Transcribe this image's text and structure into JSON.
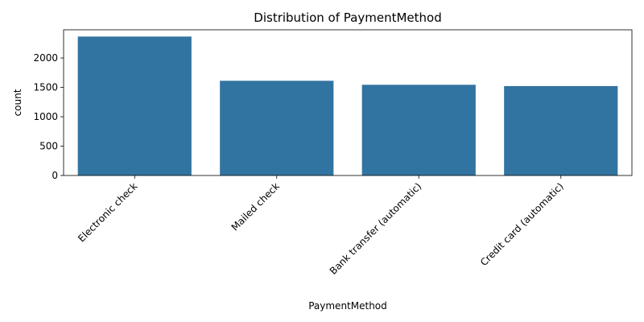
{
  "chart_data": {
    "type": "bar",
    "title": "Distribution of PaymentMethod",
    "xlabel": "PaymentMethod",
    "ylabel": "count",
    "categories": [
      "Electronic check",
      "Mailed check",
      "Bank transfer (automatic)",
      "Credit card (automatic)"
    ],
    "values": [
      2365,
      1612,
      1544,
      1522
    ],
    "ylim": [
      0,
      2480
    ],
    "yticks": [
      0,
      500,
      1000,
      1500,
      2000
    ],
    "ytick_labels": [
      "0",
      "500",
      "1000",
      "1500",
      "2000"
    ],
    "bar_color": "#3274a1",
    "grid": false,
    "legend": "none"
  }
}
